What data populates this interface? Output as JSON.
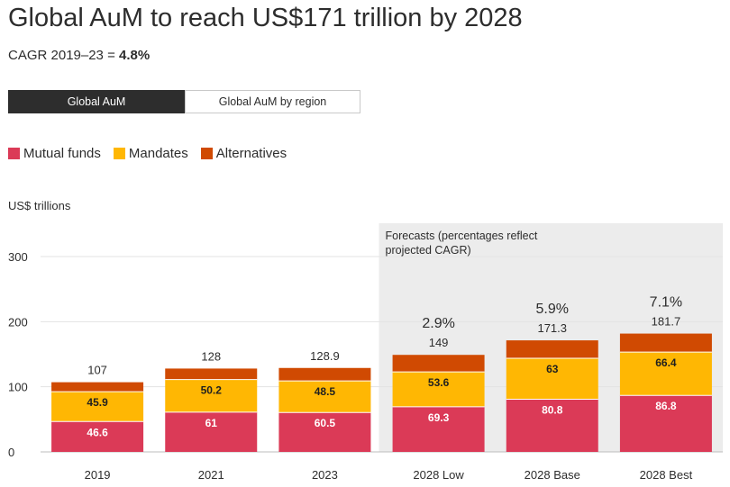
{
  "header": {
    "title": "Global AuM to reach US$171 trillion by 2028",
    "subtitle_prefix": "CAGR 2019–23 = ",
    "subtitle_value": "4.8%"
  },
  "tabs": [
    {
      "label": "Global AuM",
      "active": true
    },
    {
      "label": "Global AuM by region",
      "active": false
    }
  ],
  "legend": [
    {
      "label": "Mutual funds",
      "color": "#db3a57"
    },
    {
      "label": "Mandates",
      "color": "#ffb703"
    },
    {
      "label": "Alternatives",
      "color": "#d04a02"
    }
  ],
  "unit_label": "US$ trillions",
  "chart_data": {
    "type": "bar",
    "stacked": true,
    "title": "Global AuM to reach US$171 trillion by 2028",
    "ylabel": "US$ trillions",
    "ylim": [
      0,
      300
    ],
    "yticks": [
      0,
      100,
      200,
      300
    ],
    "grid": true,
    "categories": [
      "2019",
      "2021",
      "2023",
      "2028 Low",
      "2028 Base",
      "2028 Best"
    ],
    "series": [
      {
        "name": "Mutual funds",
        "color": "#db3a57",
        "values": [
          46.6,
          61,
          60.5,
          69.3,
          80.8,
          86.8
        ],
        "labels": [
          "46.6",
          "61",
          "60.5",
          "69.3",
          "80.8",
          "86.8"
        ]
      },
      {
        "name": "Mandates",
        "color": "#ffb703",
        "values": [
          45.9,
          50.2,
          48.5,
          53.6,
          63,
          66.4
        ],
        "labels": [
          "45.9",
          "50.2",
          "48.5",
          "53.6",
          "63",
          "66.4"
        ]
      },
      {
        "name": "Alternatives",
        "color": "#d04a02",
        "values": [
          14.5,
          16.8,
          19.9,
          26.1,
          27.5,
          28.5
        ]
      }
    ],
    "totals": [
      "107",
      "128",
      "128.9",
      "149",
      "171.3",
      "181.7"
    ],
    "cagr_labels": [
      "",
      "",
      "",
      "2.9%",
      "5.9%",
      "7.1%"
    ],
    "forecast_note": [
      "Forecasts (percentages reflect",
      "projected CAGR)"
    ],
    "forecast_start_index": 3
  }
}
